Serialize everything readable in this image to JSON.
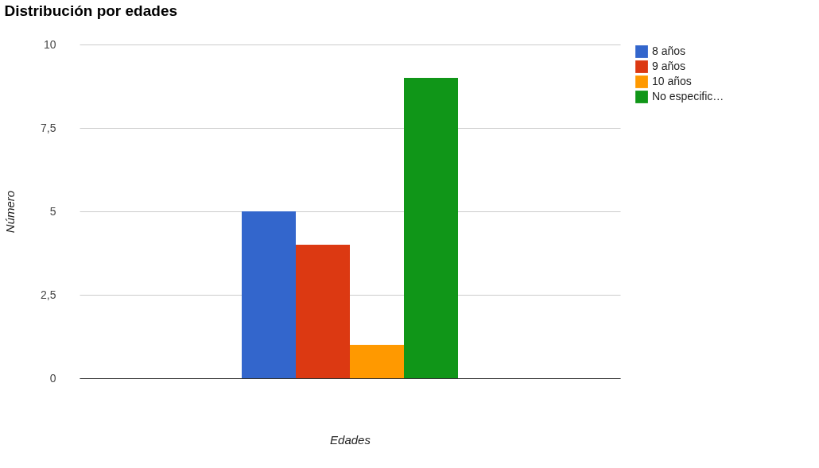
{
  "chart_data": {
    "type": "bar",
    "title": "Distribución por edades",
    "xlabel": "Edades",
    "ylabel": "Número",
    "categories": [
      null
    ],
    "series": [
      {
        "name": "8 años",
        "color": "#3366cc",
        "values": [
          5
        ]
      },
      {
        "name": "9 años",
        "color": "#dc3912",
        "values": [
          4
        ]
      },
      {
        "name": "10 años",
        "color": "#ff9900",
        "values": [
          1
        ]
      },
      {
        "name": "No especific…",
        "color": "#109618",
        "values": [
          9
        ]
      }
    ],
    "ylim": [
      0,
      10
    ],
    "yticks": [
      0,
      {
        "value": 2.5,
        "label": "2,5"
      },
      5,
      {
        "value": 7.5,
        "label": "7,5"
      },
      10
    ],
    "grid": "y",
    "legend": "top right",
    "tick_labels": "y"
  }
}
